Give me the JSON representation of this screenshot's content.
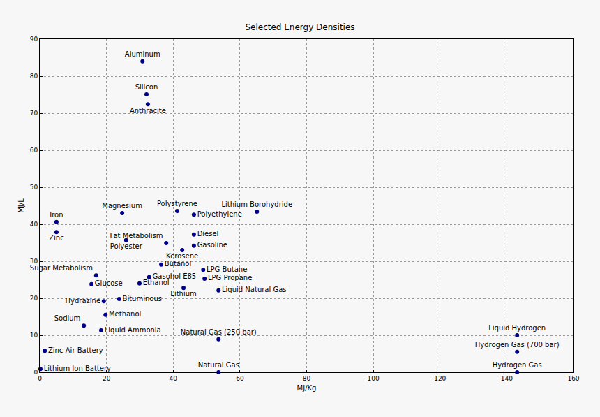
{
  "chart_data": {
    "type": "scatter",
    "title": "Selected Energy Densities",
    "x_label": "MJ/Kg",
    "y_label": "MJ/L",
    "labels": [
      "Aluminum",
      "Silicon",
      "Anthracite",
      "Magnesium",
      "Polystyrene",
      "Polyethylene",
      "Lithium Borohydride",
      "Iron",
      "Zinc",
      "Fat Metabolism",
      "Polyester",
      "Diesel",
      "Gasoline",
      "Kerosene",
      "Butanol",
      "LPG Butane",
      "LPG Propane",
      "Gasohol E85",
      "Sugar Metabolism",
      "Glucose",
      "Ethanol",
      "Lithium",
      "Liquid Natural Gas",
      "Bituminous",
      "Hydrazine",
      "Methanol",
      "Sodium",
      "Liquid Ammonia",
      "Natural Gas (250 bar)",
      "Zinc-Air Battery",
      "Lithium Ion Battery",
      "Natural Gas",
      "Liquid Hydrogen",
      "Hydrogen Gas (700 bar)",
      "Hydrogen Gas"
    ],
    "x": [
      30.8,
      32.0,
      32.4,
      24.7,
      41.2,
      46.2,
      65.1,
      5.0,
      5.0,
      37.9,
      25.9,
      46.2,
      46.2,
      42.7,
      36.4,
      49.0,
      49.4,
      32.8,
      16.9,
      15.5,
      29.9,
      43.1,
      53.6,
      23.8,
      19.2,
      19.7,
      13.2,
      18.4,
      53.6,
      1.5,
      0.2,
      53.6,
      143.1,
      143.1,
      143.1
    ],
    "values": [
      84.0,
      75.1,
      72.4,
      43.0,
      43.6,
      42.6,
      43.4,
      40.6,
      37.9,
      34.9,
      35.7,
      37.2,
      34.2,
      33.0,
      29.1,
      27.7,
      25.3,
      25.7,
      26.2,
      23.8,
      24.0,
      22.8,
      22.1,
      19.8,
      19.2,
      15.5,
      12.6,
      11.3,
      8.9,
      5.8,
      0.9,
      0.0,
      10.0,
      5.5,
      0.0
    ],
    "color": "#00008b",
    "marker": "circle",
    "xlim": [
      0,
      160
    ],
    "xticks": [
      0,
      20,
      40,
      60,
      80,
      100,
      120,
      140,
      160
    ],
    "ylim": [
      0,
      90
    ],
    "yticks": [
      0,
      10,
      20,
      30,
      40,
      50,
      60,
      70,
      80,
      90
    ],
    "grid": true
  }
}
